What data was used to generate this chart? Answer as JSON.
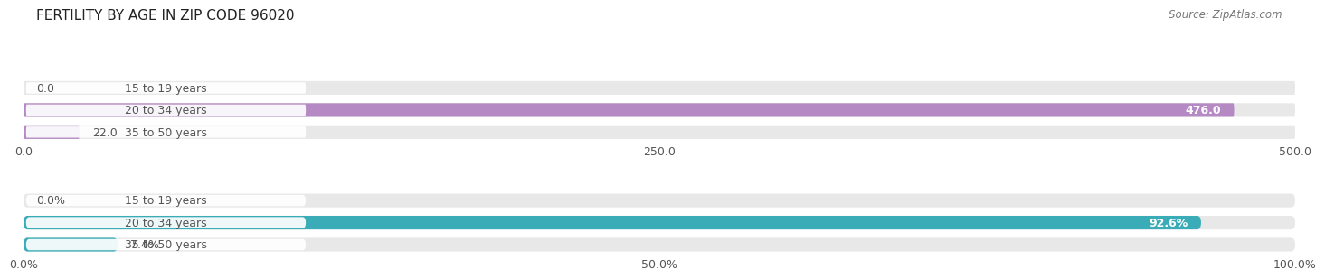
{
  "title": "FERTILITY BY AGE IN ZIP CODE 96020",
  "source": "Source: ZipAtlas.com",
  "top_chart": {
    "categories": [
      "15 to 19 years",
      "20 to 34 years",
      "35 to 50 years"
    ],
    "values": [
      0.0,
      476.0,
      22.0
    ],
    "value_labels": [
      "0.0",
      "476.0",
      "22.0"
    ],
    "xlim": [
      0,
      500
    ],
    "xticks": [
      0.0,
      250.0,
      500.0
    ],
    "xtick_labels": [
      "0.0",
      "250.0",
      "500.0"
    ],
    "bar_color": "#b589c3",
    "bar_bg_color": "#e8e8e8",
    "label_bg_color": "#ffffff"
  },
  "bottom_chart": {
    "categories": [
      "15 to 19 years",
      "20 to 34 years",
      "35 to 50 years"
    ],
    "values": [
      0.0,
      92.6,
      7.4
    ],
    "xlim": [
      0,
      100
    ],
    "xticks": [
      0.0,
      50.0,
      100.0
    ],
    "xtick_labels": [
      "0.0%",
      "50.0%",
      "100.0%"
    ],
    "bar_color": "#3aacb8",
    "bar_bg_color": "#e8e8e8",
    "label_bg_color": "#ffffff",
    "value_labels": [
      "0.0%",
      "92.6%",
      "7.4%"
    ]
  },
  "label_color": "#555555",
  "label_fontsize": 9,
  "value_fontsize": 9,
  "title_fontsize": 11,
  "source_fontsize": 8.5,
  "bg_color": "#ffffff",
  "fig_bg_color": "#f0f0f0"
}
